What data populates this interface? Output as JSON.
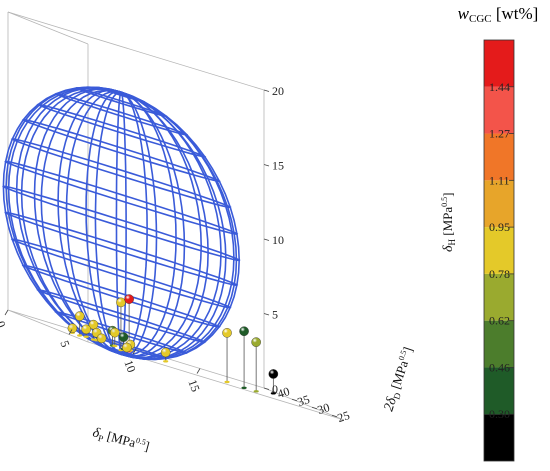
{
  "colorbar": {
    "title_var": "w",
    "title_sub": "CGC",
    "title_unit": "[wt%]",
    "tick_labels": [
      "0.30",
      "0.46",
      "0.62",
      "0.78",
      "0.95",
      "1.11",
      "1.27",
      "1.44"
    ],
    "band_colors": [
      "#000000",
      "#1f5b28",
      "#4c7d2c",
      "#9aaa2f",
      "#e4c929",
      "#e7a52a",
      "#f07628",
      "#f3544a",
      "#e41b1b"
    ]
  },
  "chart_data": {
    "type": "scatter3d",
    "axes": {
      "x": {
        "label": "δ",
        "sub": "P",
        "unit": " [MPa",
        "exp": "0.5",
        "close": "]",
        "ticks": [
          0,
          5,
          10,
          15
        ],
        "range": [
          0,
          20
        ]
      },
      "y": {
        "label": "2δ",
        "sub": "D",
        "unit": " [MPa",
        "exp": "0.5",
        "close": "]",
        "ticks": [
          25,
          30,
          35,
          40
        ],
        "range": [
          22,
          42
        ]
      },
      "z": {
        "label": "δ",
        "sub": "H",
        "unit": " [MPa",
        "exp": "0.5",
        "close": "]",
        "ticks": [
          0,
          5,
          10,
          15,
          20
        ],
        "range": [
          0,
          20
        ]
      }
    },
    "sphere": {
      "center": [
        5.6,
        31.6,
        8.4
      ],
      "radius": 8.8,
      "color": "#3a5bd9"
    },
    "points": [
      {
        "x": 5.9,
        "y": 30.6,
        "z": 3.5,
        "w": 1.55
      },
      {
        "x": 4.2,
        "y": 27.2,
        "z": 3.2,
        "w": 0.88
      },
      {
        "x": 12.8,
        "y": 28.2,
        "z": 3.3,
        "w": 0.85
      },
      {
        "x": 13.6,
        "y": 26.5,
        "z": 3.8,
        "w": 0.4
      },
      {
        "x": 14.7,
        "y": 27.0,
        "z": 3.3,
        "w": 0.65
      },
      {
        "x": 18.7,
        "y": 35.5,
        "z": 1.3,
        "w": 0.2
      },
      {
        "x": 2.6,
        "y": 32.4,
        "z": 1.3,
        "w": 0.87
      },
      {
        "x": 3.8,
        "y": 32.8,
        "z": 1.0,
        "w": 0.92
      },
      {
        "x": 5.1,
        "y": 32.2,
        "z": 1.0,
        "w": 0.5
      },
      {
        "x": 5.5,
        "y": 32.9,
        "z": 0.9,
        "w": 0.84
      },
      {
        "x": 5.9,
        "y": 32.0,
        "z": 0.8,
        "w": 0.38
      },
      {
        "x": 4.3,
        "y": 33.6,
        "z": 0.5,
        "w": 0.86
      },
      {
        "x": 3.7,
        "y": 34.3,
        "z": 0.5,
        "w": 0.89
      },
      {
        "x": 5.0,
        "y": 34.6,
        "z": 0.2,
        "w": 0.82
      },
      {
        "x": 7.0,
        "y": 34.7,
        "z": 0.1,
        "w": 0.91
      },
      {
        "x": 2.5,
        "y": 33.9,
        "z": 0.3,
        "w": 0.88
      },
      {
        "x": 9.6,
        "y": 33.3,
        "z": 0.6,
        "w": 0.84
      },
      {
        "x": 6.9,
        "y": 33.5,
        "z": 0.4,
        "w": 0.86
      }
    ]
  }
}
